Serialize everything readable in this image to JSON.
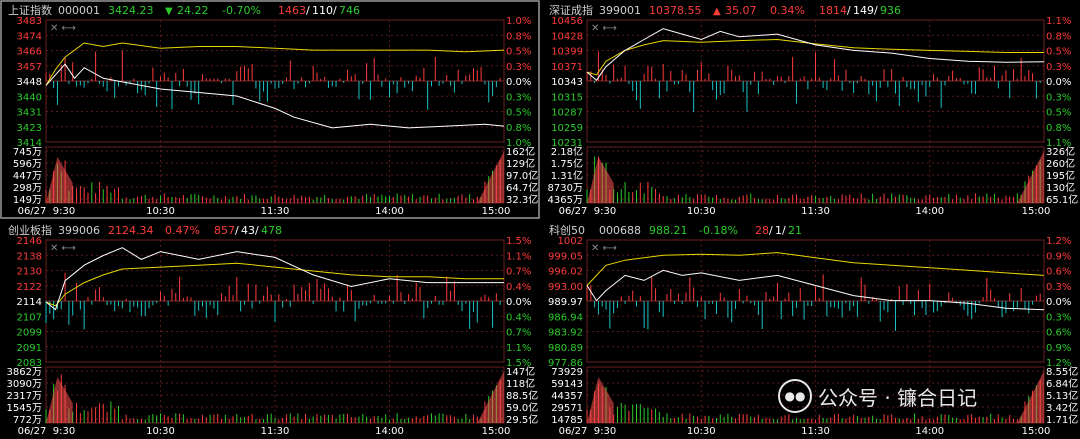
{
  "colors": {
    "up": "#ff3b3b",
    "down": "#19c3c3",
    "price": "#ffffff",
    "avg": "#e8d800",
    "grid": "#5a1a1a",
    "label_up": "#ff3b3b",
    "label_flat": "#ffffff",
    "label_down": "#2ccb2c",
    "header": "#d0d0d0"
  },
  "watermark": {
    "text": "公众号 · 镰合日记",
    "icon": "wechat-icon"
  },
  "chart_data": [
    {
      "type": "line",
      "panel": "top-left",
      "selected": true,
      "name": "上证指数",
      "code": "000001",
      "last": "3424.23",
      "arrow": "▼",
      "change": "24.22",
      "pct": "-0.70%",
      "breadth": {
        "up": "1463",
        "flat": "110",
        "down": "746"
      },
      "price_ticks": [
        "3483",
        "3474",
        "3466",
        "3457",
        "3448",
        "3440",
        "3431",
        "3423",
        "3414"
      ],
      "pct_ticks": [
        "1.0%",
        "0.8%",
        "0.5%",
        "0.3%",
        "0.0%",
        "0.3%",
        "0.5%",
        "0.8%",
        "1.0%"
      ],
      "vol_ticks": [
        "745万",
        "596万",
        "447万",
        "298万",
        "149万"
      ],
      "amt_ticks": [
        "162亿",
        "129亿",
        "97.0亿",
        "64.7亿",
        "32.3亿"
      ],
      "time_labels": [
        "06/27",
        "9:30",
        "10:30",
        "11:30",
        "14:00",
        "15:00"
      ],
      "ylim": [
        3414,
        3483
      ],
      "price": [
        [
          0,
          3446
        ],
        [
          5,
          3452
        ],
        [
          10,
          3458
        ],
        [
          15,
          3450
        ],
        [
          20,
          3456
        ],
        [
          30,
          3450
        ],
        [
          40,
          3448
        ],
        [
          60,
          3444
        ],
        [
          80,
          3442
        ],
        [
          100,
          3440
        ],
        [
          120,
          3433
        ],
        [
          130,
          3428
        ],
        [
          150,
          3422
        ],
        [
          170,
          3424
        ],
        [
          190,
          3422
        ],
        [
          210,
          3423
        ],
        [
          230,
          3424
        ],
        [
          240,
          3423
        ]
      ],
      "avg": [
        [
          0,
          3446
        ],
        [
          5,
          3455
        ],
        [
          10,
          3462
        ],
        [
          20,
          3470
        ],
        [
          30,
          3468
        ],
        [
          40,
          3470
        ],
        [
          60,
          3467
        ],
        [
          80,
          3468
        ],
        [
          100,
          3468
        ],
        [
          120,
          3467
        ],
        [
          140,
          3466
        ],
        [
          160,
          3466
        ],
        [
          180,
          3466
        ],
        [
          200,
          3466
        ],
        [
          220,
          3465
        ],
        [
          240,
          3466
        ]
      ]
    },
    {
      "type": "line",
      "panel": "top-right",
      "selected": false,
      "name": "深证成指",
      "code": "399001",
      "last": "10378.55",
      "arrow": "▲",
      "change": "35.07",
      "pct": "0.34%",
      "breadth": {
        "up": "1814",
        "flat": "149",
        "down": "936"
      },
      "price_ticks": [
        "10456",
        "10428",
        "10399",
        "10371",
        "10343",
        "10315",
        "10287",
        "10259",
        "10231"
      ],
      "pct_ticks": [
        "1.1%",
        "0.8%",
        "0.5%",
        "0.3%",
        "0.0%",
        "0.3%",
        "0.5%",
        "0.8%",
        "1.1%"
      ],
      "vol_ticks": [
        "2.18亿",
        "1.75亿",
        "1.31亿",
        "8730万",
        "4365万"
      ],
      "amt_ticks": [
        "326亿",
        "260亿",
        "195亿",
        "130亿",
        "65.1亿"
      ],
      "time_labels": [
        "06/27",
        "9:30",
        "10:30",
        "11:30",
        "14:00",
        "15:00"
      ],
      "ylim": [
        10231,
        10456
      ],
      "price": [
        [
          0,
          10360
        ],
        [
          5,
          10345
        ],
        [
          10,
          10370
        ],
        [
          20,
          10400
        ],
        [
          30,
          10420
        ],
        [
          40,
          10440
        ],
        [
          50,
          10430
        ],
        [
          60,
          10420
        ],
        [
          70,
          10435
        ],
        [
          80,
          10425
        ],
        [
          100,
          10430
        ],
        [
          120,
          10410
        ],
        [
          140,
          10400
        ],
        [
          160,
          10395
        ],
        [
          180,
          10385
        ],
        [
          200,
          10380
        ],
        [
          220,
          10378
        ],
        [
          240,
          10379
        ]
      ],
      "avg": [
        [
          0,
          10360
        ],
        [
          5,
          10355
        ],
        [
          10,
          10380
        ],
        [
          20,
          10400
        ],
        [
          30,
          10410
        ],
        [
          40,
          10418
        ],
        [
          60,
          10415
        ],
        [
          80,
          10418
        ],
        [
          100,
          10420
        ],
        [
          120,
          10412
        ],
        [
          140,
          10405
        ],
        [
          160,
          10402
        ],
        [
          180,
          10400
        ],
        [
          200,
          10398
        ],
        [
          220,
          10396
        ],
        [
          240,
          10396
        ]
      ]
    },
    {
      "type": "line",
      "panel": "bottom-left",
      "selected": false,
      "name": "创业板指",
      "code": "399006",
      "last": "2124.34",
      "arrow": "",
      "change": "",
      "pct": "0.47%",
      "breadth": {
        "up": "857",
        "flat": "43",
        "down": "478"
      },
      "price_ticks": [
        "2146",
        "2138",
        "2130",
        "2122",
        "2114",
        "2107",
        "2099",
        "2091",
        "2083"
      ],
      "pct_ticks": [
        "1.5%",
        "1.1%",
        "0.7%",
        "0.4%",
        "0.0%",
        "0.4%",
        "0.7%",
        "1.1%",
        "1.5%"
      ],
      "vol_ticks": [
        "3862万",
        "3090万",
        "2317万",
        "1545万",
        "772万"
      ],
      "amt_ticks": [
        "147亿",
        "118亿",
        "88.5亿",
        "59.0亿",
        "29.5亿"
      ],
      "time_labels": [
        "06/27",
        "9:30",
        "10:30",
        "11:30",
        "14:00",
        "15:00"
      ],
      "ylim": [
        2083,
        2146
      ],
      "price": [
        [
          0,
          2114
        ],
        [
          5,
          2110
        ],
        [
          10,
          2125
        ],
        [
          20,
          2133
        ],
        [
          30,
          2138
        ],
        [
          40,
          2142
        ],
        [
          50,
          2136
        ],
        [
          60,
          2140
        ],
        [
          80,
          2136
        ],
        [
          100,
          2140
        ],
        [
          120,
          2137
        ],
        [
          140,
          2128
        ],
        [
          160,
          2122
        ],
        [
          180,
          2126
        ],
        [
          200,
          2124
        ],
        [
          220,
          2124
        ],
        [
          240,
          2124
        ]
      ],
      "avg": [
        [
          0,
          2114
        ],
        [
          5,
          2112
        ],
        [
          10,
          2118
        ],
        [
          20,
          2124
        ],
        [
          30,
          2128
        ],
        [
          40,
          2131
        ],
        [
          60,
          2132
        ],
        [
          80,
          2133
        ],
        [
          100,
          2134
        ],
        [
          120,
          2132
        ],
        [
          140,
          2130
        ],
        [
          160,
          2128
        ],
        [
          180,
          2127
        ],
        [
          200,
          2127
        ],
        [
          220,
          2126
        ],
        [
          240,
          2126
        ]
      ]
    },
    {
      "type": "line",
      "panel": "bottom-right",
      "selected": false,
      "name": "科创50",
      "code": "000688",
      "last": "988.21",
      "arrow": "",
      "change": "",
      "pct": "-0.18%",
      "breadth": {
        "up": "28",
        "flat": "1",
        "down": "21"
      },
      "price_ticks": [
        "1002",
        "999.05",
        "996.02",
        "993.00",
        "989.97",
        "986.94",
        "983.92",
        "980.89",
        "977.86"
      ],
      "pct_ticks": [
        "1.2%",
        "0.9%",
        "0.6%",
        "0.3%",
        "0.0%",
        "0.3%",
        "0.6%",
        "0.9%",
        "1.2%"
      ],
      "vol_ticks": [
        "73929",
        "59143",
        "44357",
        "29571",
        "14785"
      ],
      "amt_ticks": [
        "8.55亿",
        "6.84亿",
        "5.13亿",
        "3.42亿",
        "1.71亿"
      ],
      "time_labels": [
        "06/27",
        "9:30",
        "10:30",
        "11:30",
        "14:00",
        "15:00"
      ],
      "ylim": [
        977.86,
        1002
      ],
      "price": [
        [
          0,
          993
        ],
        [
          5,
          990
        ],
        [
          10,
          992
        ],
        [
          20,
          995
        ],
        [
          30,
          994
        ],
        [
          40,
          996
        ],
        [
          50,
          995
        ],
        [
          60,
          995.5
        ],
        [
          80,
          994
        ],
        [
          100,
          995
        ],
        [
          120,
          993
        ],
        [
          140,
          991
        ],
        [
          160,
          990
        ],
        [
          180,
          990
        ],
        [
          200,
          989.5
        ],
        [
          220,
          988.5
        ],
        [
          240,
          988.2
        ]
      ],
      "avg": [
        [
          0,
          993
        ],
        [
          5,
          995
        ],
        [
          10,
          997
        ],
        [
          20,
          998
        ],
        [
          30,
          998.5
        ],
        [
          40,
          999
        ],
        [
          60,
          999.2
        ],
        [
          80,
          999
        ],
        [
          100,
          999.5
        ],
        [
          120,
          998.5
        ],
        [
          140,
          997.5
        ],
        [
          160,
          997
        ],
        [
          180,
          996.5
        ],
        [
          200,
          996
        ],
        [
          220,
          995.5
        ],
        [
          240,
          995
        ]
      ]
    }
  ]
}
